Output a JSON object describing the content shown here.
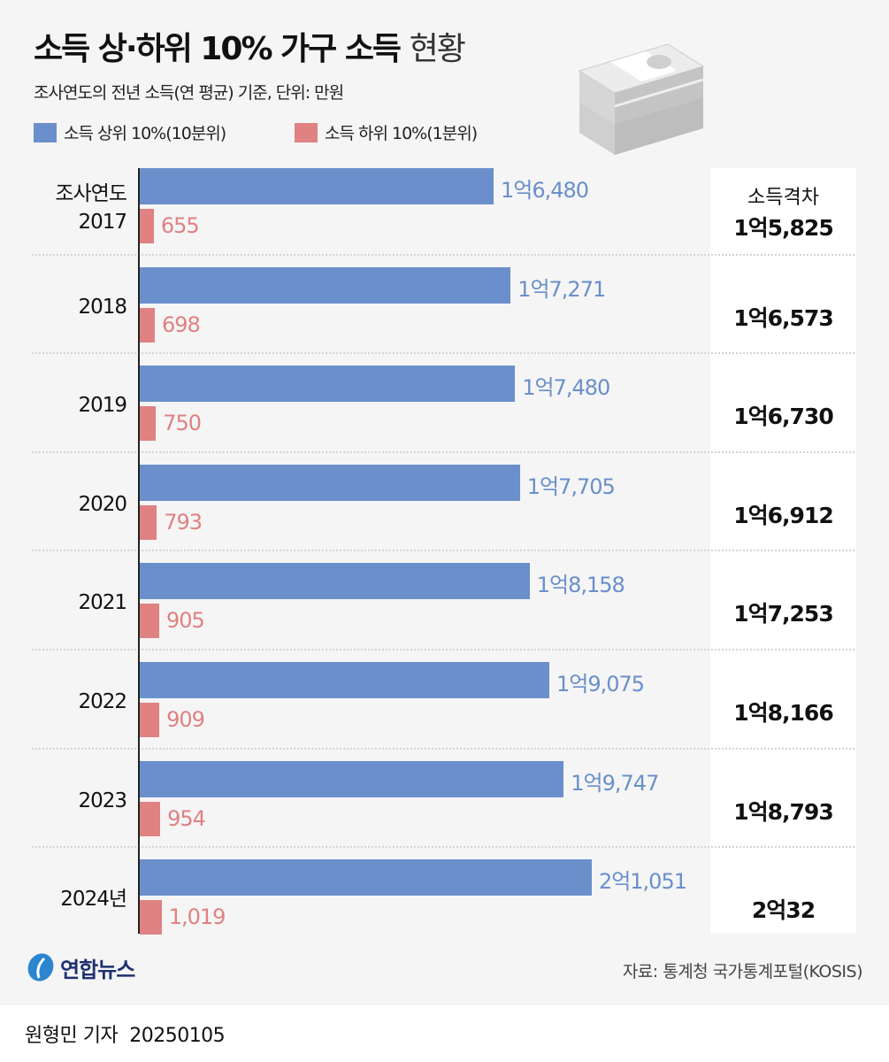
{
  "title": {
    "bold": "소득 상·하위 10% 가구 소득",
    "light": "현황"
  },
  "subtitle": "조사연도의 전년 소득(연 평균) 기준, 단위: 만원",
  "chart_data": {
    "type": "bar",
    "orientation": "horizontal",
    "categories": [
      "2017",
      "2018",
      "2019",
      "2020",
      "2021",
      "2022",
      "2023",
      "2024년"
    ],
    "category_header": "조사연도",
    "series": [
      {
        "name": "소득 상위 10%(10분위)",
        "color": "#6a8fcb",
        "values": [
          16480,
          17271,
          17480,
          17705,
          18158,
          19075,
          19747,
          21051
        ],
        "labels": [
          "1억6,480",
          "1억7,271",
          "1억7,480",
          "1억7,705",
          "1억8,158",
          "1억9,075",
          "1억9,747",
          "2억1,051"
        ]
      },
      {
        "name": "소득 하위 10%(1분위)",
        "color": "#e08182",
        "values": [
          655,
          698,
          750,
          793,
          905,
          909,
          954,
          1019
        ],
        "labels": [
          "655",
          "698",
          "750",
          "793",
          "905",
          "909",
          "954",
          "1,019"
        ]
      }
    ],
    "gap": {
      "header": "소득격차",
      "labels": [
        "1억5,825",
        "1억6,573",
        "1억6,730",
        "1억6,912",
        "1억7,253",
        "1억8,166",
        "1억8,793",
        "2억32"
      ]
    },
    "unit": "만원"
  },
  "source": "자료: 통계청 국가통계포털(KOSIS)",
  "logo": "연합뉴스",
  "byline": {
    "reporter": "원형민 기자",
    "date": "20250105"
  },
  "icon": "money-stack-icon"
}
